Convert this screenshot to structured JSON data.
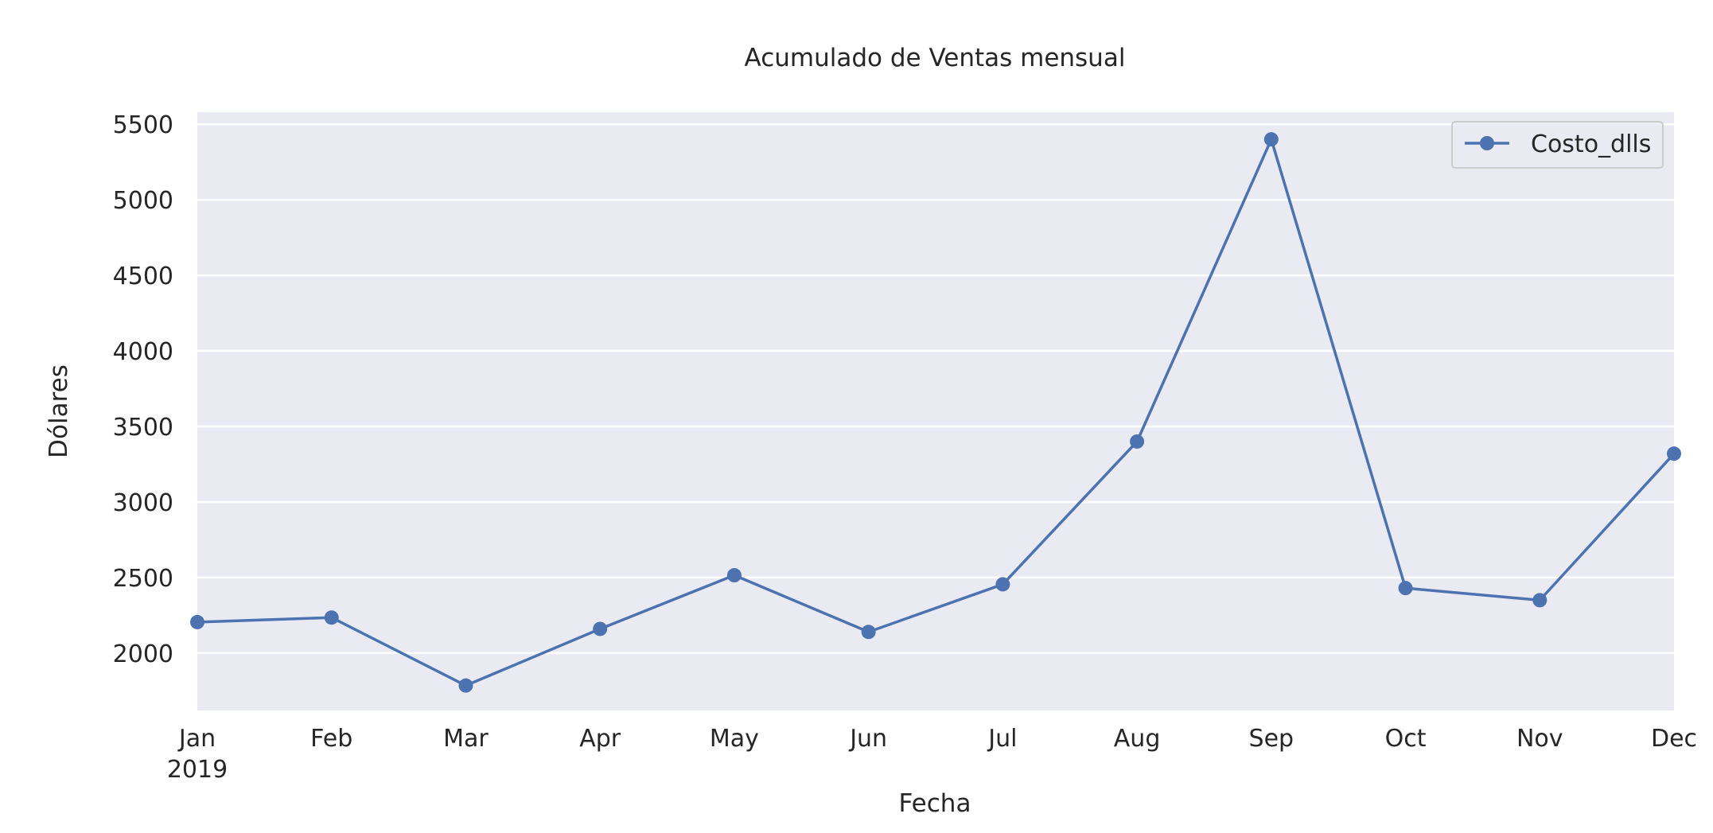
{
  "chart_data": {
    "type": "line",
    "title": "Acumulado de Ventas mensual",
    "xlabel": "Fecha",
    "ylabel": "Dólares",
    "categories": [
      "Jan",
      "Feb",
      "Mar",
      "Apr",
      "May",
      "Jun",
      "Jul",
      "Aug",
      "Sep",
      "Oct",
      "Nov",
      "Dec"
    ],
    "year_label": "2019",
    "series": [
      {
        "name": "Costo_dlls",
        "values": [
          2205,
          2235,
          1785,
          2160,
          2515,
          2140,
          2455,
          3400,
          5400,
          2430,
          2350,
          3320
        ],
        "color": "#4c72b0"
      }
    ],
    "yticks": [
      "2000",
      "2500",
      "3000",
      "3500",
      "4000",
      "4500",
      "5000",
      "5500"
    ],
    "ylim": [
      1620,
      5580
    ],
    "grid": true,
    "legend_position": "top-right",
    "colors": {
      "plot_background": "#eaeaf2",
      "grid": "#ffffff",
      "text": "#262626",
      "line": "#4c72b0"
    }
  }
}
